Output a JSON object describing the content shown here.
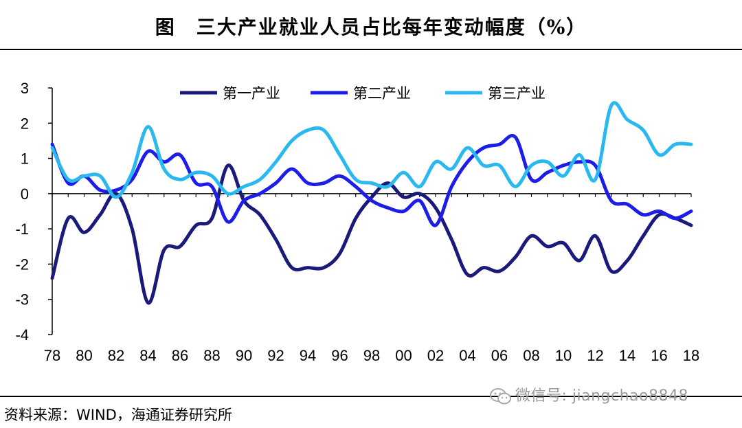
{
  "title": "图　三大产业就业人员占比每年变动幅度（%）",
  "source": "资料来源：WIND，海通证券研究所",
  "watermark": "微信号: jiangchao8848",
  "chart_data": {
    "type": "line",
    "title": "图　三大产业就业人员占比每年变动幅度（%）",
    "xlabel": "",
    "ylabel": "",
    "ylim": [
      -4,
      3
    ],
    "xlim": [
      1978,
      2018
    ],
    "yticks": [
      3,
      2,
      1,
      0,
      -1,
      -2,
      -3,
      -4
    ],
    "xticks": [
      "78",
      "80",
      "82",
      "84",
      "86",
      "88",
      "90",
      "92",
      "94",
      "96",
      "98",
      "00",
      "02",
      "04",
      "06",
      "08",
      "10",
      "12",
      "14",
      "16",
      "18"
    ],
    "legend_position": "top-center",
    "grid": false,
    "x": [
      1978,
      1979,
      1980,
      1981,
      1982,
      1983,
      1984,
      1985,
      1986,
      1987,
      1988,
      1989,
      1990,
      1991,
      1992,
      1993,
      1994,
      1995,
      1996,
      1997,
      1998,
      1999,
      2000,
      2001,
      2002,
      2003,
      2004,
      2005,
      2006,
      2007,
      2008,
      2009,
      2010,
      2011,
      2012,
      2013,
      2014,
      2015,
      2016,
      2017,
      2018
    ],
    "series": [
      {
        "name": "第一产业",
        "color": "#1a1a7a",
        "values": [
          -2.4,
          -0.7,
          -1.1,
          -0.6,
          0.0,
          -1.0,
          -3.1,
          -1.6,
          -1.5,
          -0.9,
          -0.7,
          0.8,
          -0.2,
          -0.6,
          -1.3,
          -2.1,
          -2.1,
          -2.1,
          -1.7,
          -0.7,
          -0.1,
          0.3,
          -0.1,
          0.0,
          -0.4,
          -1.3,
          -2.3,
          -2.1,
          -2.2,
          -1.8,
          -1.2,
          -1.5,
          -1.4,
          -1.9,
          -1.2,
          -2.2,
          -1.9,
          -1.2,
          -0.6,
          -0.7,
          -0.9
        ]
      },
      {
        "name": "第二产业",
        "color": "#1d1de8",
        "values": [
          1.4,
          0.3,
          0.5,
          0.1,
          0.1,
          0.4,
          1.2,
          0.9,
          1.1,
          0.3,
          0.2,
          -0.8,
          -0.2,
          0.0,
          0.3,
          0.7,
          0.3,
          0.3,
          0.5,
          0.2,
          -0.2,
          -0.4,
          -0.5,
          -0.2,
          -0.9,
          0.2,
          0.9,
          1.3,
          1.4,
          1.6,
          0.4,
          0.6,
          0.8,
          0.9,
          0.8,
          -0.2,
          -0.3,
          -0.6,
          -0.5,
          -0.7,
          -0.5
        ]
      },
      {
        "name": "第三产业",
        "color": "#2ab8f0",
        "values": [
          1.3,
          0.4,
          0.5,
          0.5,
          -0.1,
          0.6,
          1.9,
          0.7,
          0.4,
          0.6,
          0.5,
          0.0,
          0.2,
          0.4,
          0.9,
          1.5,
          1.8,
          1.8,
          1.1,
          0.4,
          0.3,
          0.2,
          0.6,
          0.2,
          0.9,
          0.7,
          1.3,
          0.8,
          0.8,
          0.2,
          0.8,
          0.9,
          0.5,
          1.1,
          0.4,
          2.5,
          2.1,
          1.8,
          1.1,
          1.4,
          1.4
        ]
      }
    ]
  }
}
